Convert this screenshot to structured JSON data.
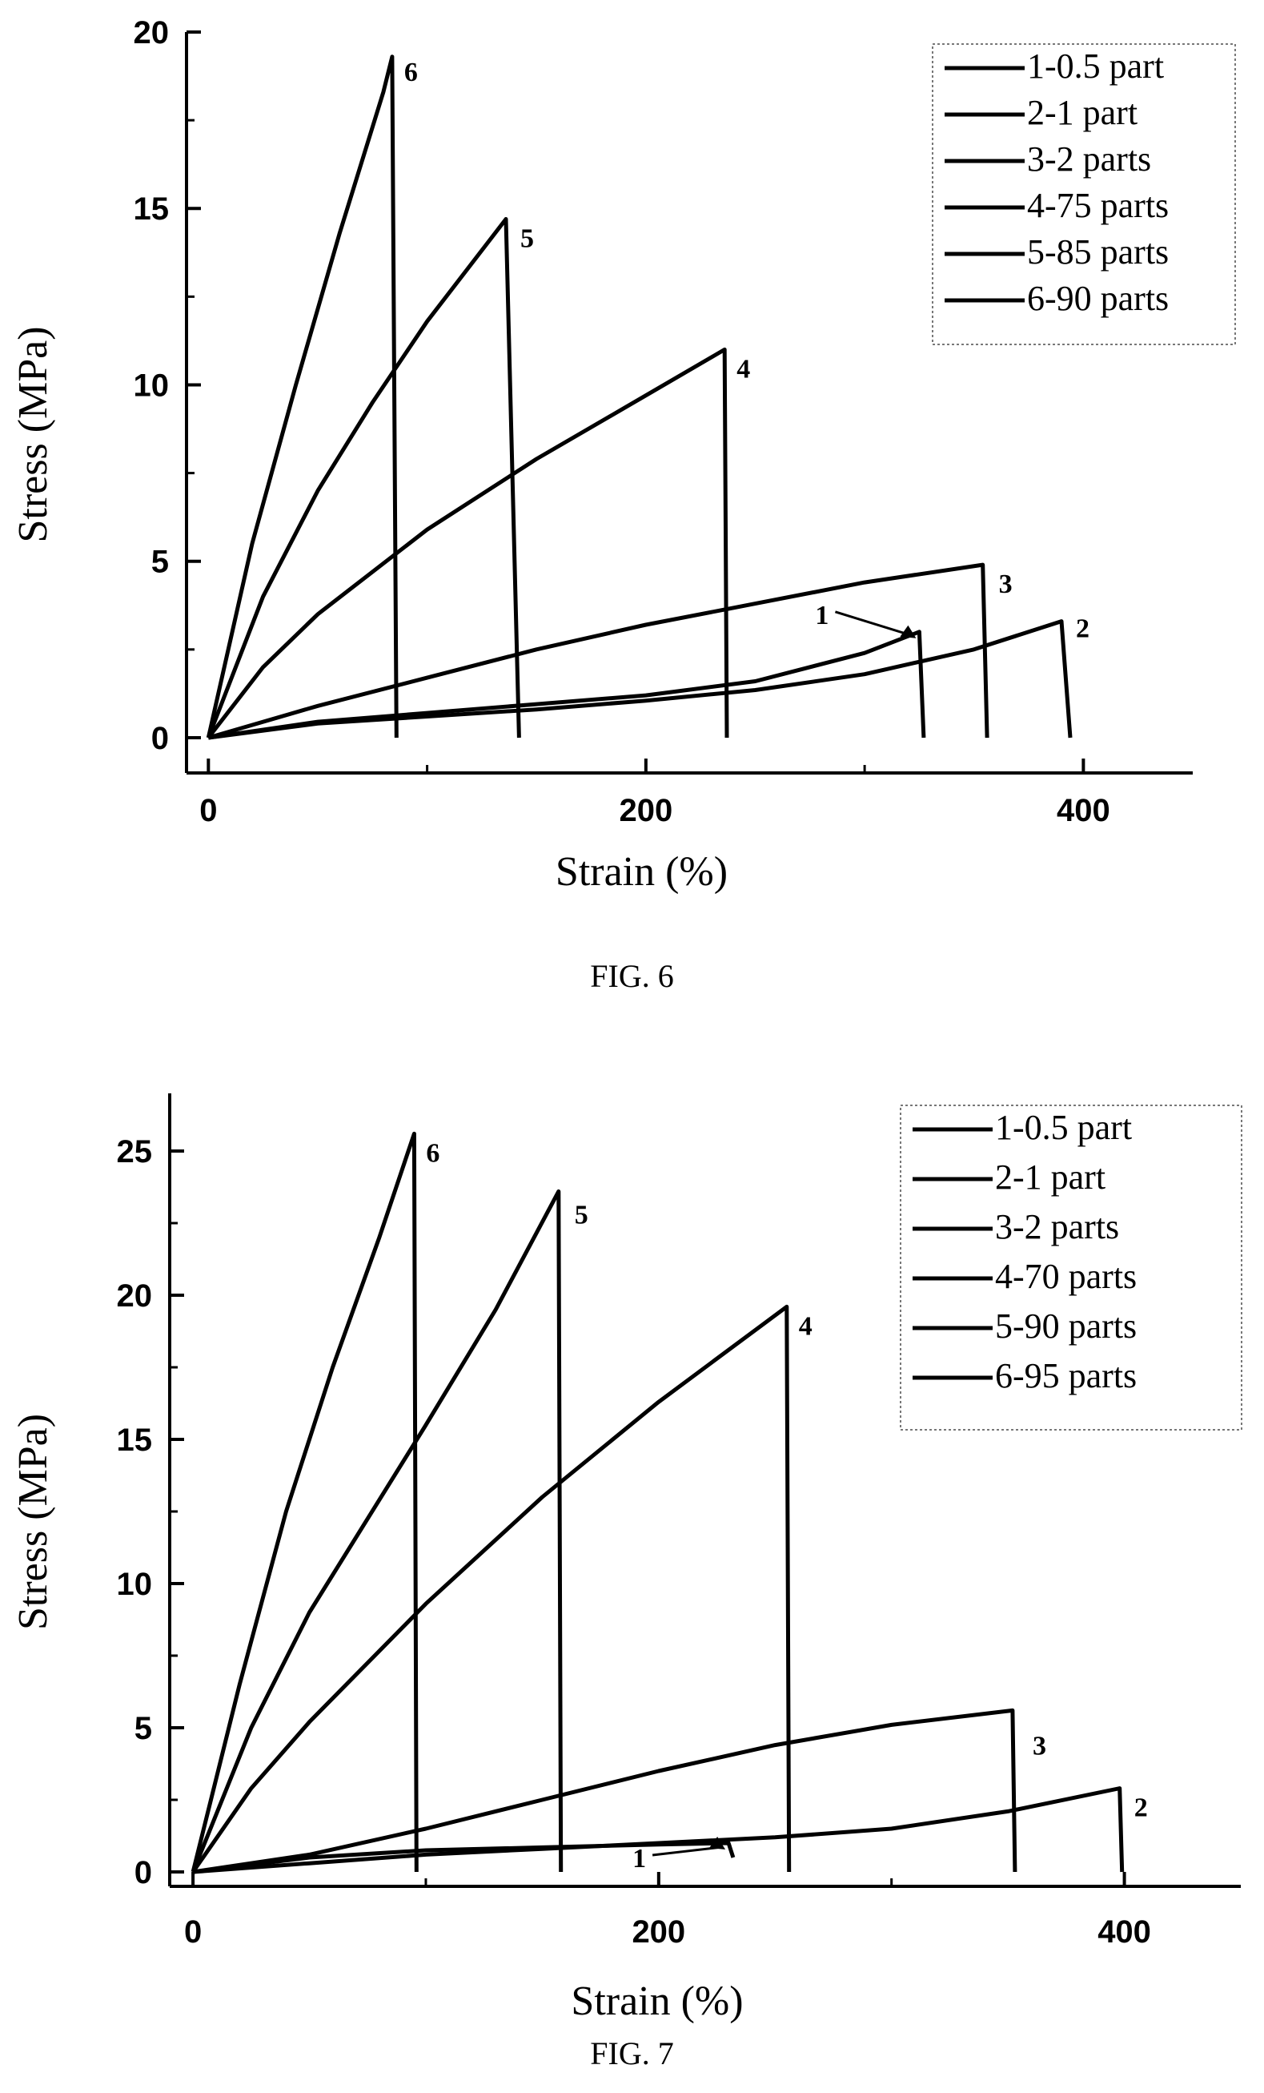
{
  "chart_data": [
    {
      "type": "line",
      "caption": "FIG. 6",
      "xlabel": "Strain (%)",
      "ylabel": "Stress (MPa)",
      "xlim": [
        -10,
        450
      ],
      "ylim": [
        -1,
        20
      ],
      "xticks": [
        0,
        200,
        400
      ],
      "yticks": [
        0,
        5,
        10,
        15,
        20
      ],
      "legend_position": "top-right",
      "grid": false,
      "series": [
        {
          "name": "1-0.5 part",
          "label": "1",
          "x": [
            0,
            50,
            100,
            150,
            200,
            250,
            300,
            325,
            327
          ],
          "y": [
            0,
            0.45,
            0.7,
            0.95,
            1.2,
            1.6,
            2.4,
            3.0,
            0
          ]
        },
        {
          "name": "2-1 part",
          "label": "2",
          "x": [
            0,
            50,
            100,
            150,
            200,
            250,
            300,
            350,
            390,
            394
          ],
          "y": [
            0,
            0.4,
            0.6,
            0.8,
            1.05,
            1.35,
            1.8,
            2.5,
            3.3,
            0
          ]
        },
        {
          "name": "3-2 parts",
          "label": "3",
          "x": [
            0,
            50,
            100,
            150,
            200,
            250,
            300,
            354,
            356
          ],
          "y": [
            0,
            0.9,
            1.7,
            2.5,
            3.2,
            3.8,
            4.4,
            4.9,
            0
          ]
        },
        {
          "name": "4-75 parts",
          "label": "4",
          "x": [
            0,
            25,
            50,
            100,
            150,
            200,
            236,
            237
          ],
          "y": [
            0,
            2.0,
            3.5,
            5.9,
            7.9,
            9.7,
            11.0,
            0
          ]
        },
        {
          "name": "5-85 parts",
          "label": "5",
          "x": [
            0,
            25,
            50,
            75,
            100,
            136,
            142
          ],
          "y": [
            0,
            4.0,
            7.0,
            9.5,
            11.8,
            14.7,
            0
          ]
        },
        {
          "name": "6-90 parts",
          "label": "6",
          "x": [
            0,
            20,
            40,
            60,
            80,
            84,
            86
          ],
          "y": [
            0,
            5.5,
            10.0,
            14.3,
            18.3,
            19.3,
            0
          ]
        }
      ]
    },
    {
      "type": "line",
      "caption": "FIG. 7",
      "xlabel": "Strain (%)",
      "ylabel": "Stress (MPa)",
      "xlim": [
        -10,
        450
      ],
      "ylim": [
        -0.5,
        27
      ],
      "xticks": [
        0,
        200,
        400
      ],
      "yticks": [
        0,
        5,
        10,
        15,
        20,
        25
      ],
      "legend_position": "top-right",
      "grid": false,
      "series": [
        {
          "name": "1-0.5 part",
          "label": "1",
          "x": [
            0,
            50,
            100,
            150,
            200,
            230,
            232
          ],
          "y": [
            0,
            0.5,
            0.75,
            0.85,
            0.95,
            1.0,
            0.5
          ]
        },
        {
          "name": "2-1 part",
          "label": "2",
          "x": [
            0,
            50,
            100,
            150,
            200,
            250,
            300,
            350,
            398,
            399
          ],
          "y": [
            0,
            0.3,
            0.6,
            0.8,
            1.0,
            1.2,
            1.5,
            2.1,
            2.9,
            0
          ]
        },
        {
          "name": "3-2 parts",
          "label": "3",
          "x": [
            0,
            50,
            100,
            150,
            200,
            250,
            300,
            352,
            353
          ],
          "y": [
            0,
            0.6,
            1.5,
            2.5,
            3.5,
            4.4,
            5.1,
            5.6,
            0
          ]
        },
        {
          "name": "4-70 parts",
          "label": "4",
          "x": [
            0,
            25,
            50,
            100,
            150,
            200,
            255,
            256
          ],
          "y": [
            0,
            2.9,
            5.2,
            9.3,
            13.0,
            16.3,
            19.6,
            0
          ]
        },
        {
          "name": "5-90 parts",
          "label": "5",
          "x": [
            0,
            25,
            50,
            100,
            130,
            157,
            158
          ],
          "y": [
            0,
            5.0,
            9.0,
            15.5,
            19.5,
            23.6,
            0
          ]
        },
        {
          "name": "6-95 parts",
          "label": "6",
          "x": [
            0,
            20,
            40,
            60,
            80,
            95,
            96
          ],
          "y": [
            0,
            6.5,
            12.5,
            17.5,
            22.0,
            25.6,
            0
          ]
        }
      ]
    }
  ]
}
